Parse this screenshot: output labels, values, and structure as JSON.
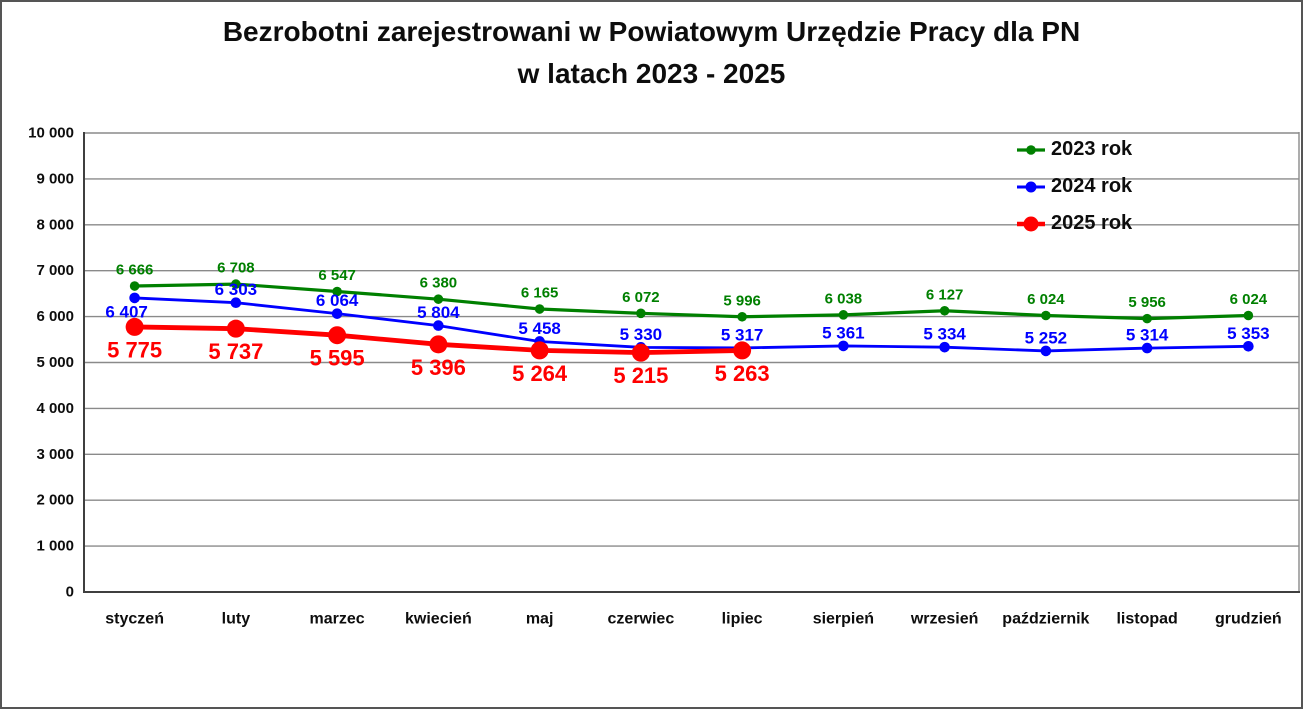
{
  "title": {
    "line1": "Bezrobotni zarejestrowani w Powiatowym Urzędzie Pracy dla PN",
    "line2": "w latach 2023 - 2025"
  },
  "chart_data": {
    "type": "line",
    "categories": [
      "styczeń",
      "luty",
      "marzec",
      "kwiecień",
      "maj",
      "czerwiec",
      "lipiec",
      "sierpień",
      "wrzesień",
      "październik",
      "listopad",
      "grudzień"
    ],
    "series": [
      {
        "name": "2023 rok",
        "color": "#008000",
        "values": [
          6666,
          6708,
          6547,
          6380,
          6165,
          6072,
          5996,
          6038,
          6127,
          6024,
          5956,
          6024
        ],
        "labels": [
          "6 666",
          "6 708",
          "6 547",
          "6 380",
          "6 165",
          "6 072",
          "5 996",
          "6 038",
          "6 127",
          "6 024",
          "5 956",
          "6 024"
        ]
      },
      {
        "name": "2024 rok",
        "color": "#0000ff",
        "values": [
          6407,
          6303,
          6064,
          5804,
          5458,
          5330,
          5317,
          5361,
          5334,
          5252,
          5314,
          5353
        ],
        "labels": [
          "6 407",
          "6 303",
          "6 064",
          "5 804",
          "5 458",
          "5 330",
          "5 317",
          "5 361",
          "5 334",
          "5 252",
          "5 314",
          "5 353"
        ]
      },
      {
        "name": "2025 rok",
        "color": "#ff0000",
        "values": [
          5775,
          5737,
          5595,
          5396,
          5264,
          5215,
          5263
        ],
        "labels": [
          "5 775",
          "5 737",
          "5 595",
          "5 396",
          "5 264",
          "5 215",
          "5 263"
        ]
      }
    ],
    "ylim": [
      0,
      10000
    ],
    "ytick_step": 1000,
    "ytick_labels": [
      "0",
      "1 000",
      "2 000",
      "3 000",
      "4 000",
      "5 000",
      "6 000",
      "7 000",
      "8 000",
      "9 000",
      "10 000"
    ],
    "grid": true,
    "legend_position": "top-right"
  }
}
